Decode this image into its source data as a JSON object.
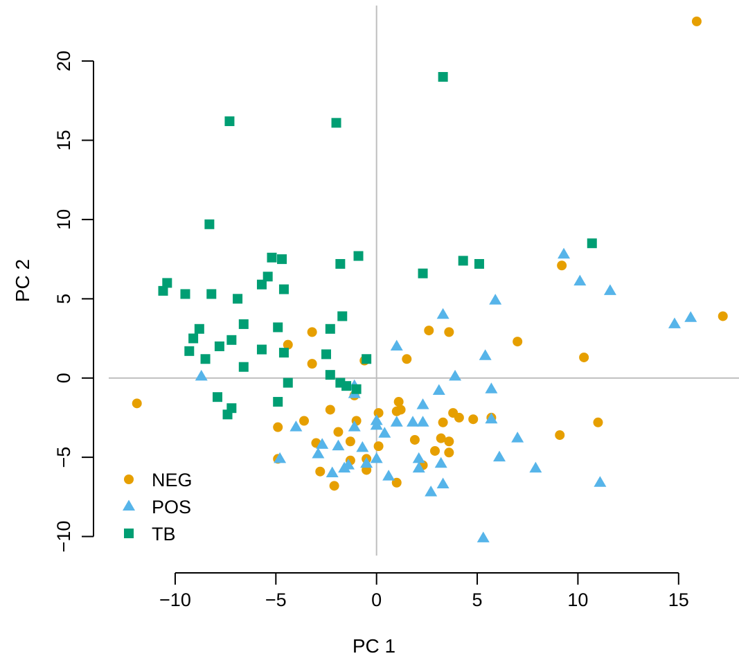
{
  "chart_data": {
    "type": "scatter",
    "title": "",
    "xlabel": "PC 1",
    "ylabel": "PC 2",
    "xlim": [
      -13.3,
      18.0
    ],
    "ylim": [
      -11.2,
      23.5
    ],
    "x_ticks": [
      -10,
      -5,
      0,
      5,
      10,
      15
    ],
    "y_ticks": [
      -10,
      -5,
      0,
      5,
      10,
      15,
      20
    ],
    "x_tick_labels": [
      "−10",
      "−5",
      "0",
      "5",
      "10",
      "15"
    ],
    "y_tick_labels": [
      "−10",
      "−5",
      "0",
      "5",
      "10",
      "15",
      "20"
    ],
    "reference_lines": {
      "x": 0,
      "y": 0
    },
    "grid": false,
    "legend_position": "bottom-left",
    "series": [
      {
        "name": "NEG",
        "color": "#E69F00",
        "marker": "circle",
        "points": [
          [
            15.9,
            22.5
          ],
          [
            17.2,
            3.9
          ],
          [
            9.2,
            7.1
          ],
          [
            10.3,
            1.3
          ],
          [
            11.0,
            -2.8
          ],
          [
            9.1,
            -3.6
          ],
          [
            7.0,
            2.3
          ],
          [
            5.7,
            -2.5
          ],
          [
            4.8,
            -2.6
          ],
          [
            4.1,
            -2.5
          ],
          [
            3.8,
            -2.2
          ],
          [
            3.3,
            -2.8
          ],
          [
            3.6,
            -4.0
          ],
          [
            3.2,
            -3.8
          ],
          [
            3.6,
            -4.7
          ],
          [
            2.9,
            -4.6
          ],
          [
            2.3,
            -5.5
          ],
          [
            2.6,
            3.0
          ],
          [
            3.6,
            2.9
          ],
          [
            1.5,
            1.2
          ],
          [
            1.1,
            -1.5
          ],
          [
            1.2,
            -2.0
          ],
          [
            1.0,
            -2.1
          ],
          [
            1.0,
            -6.6
          ],
          [
            0.1,
            -2.2
          ],
          [
            0.1,
            -4.3
          ],
          [
            -0.5,
            -5.1
          ],
          [
            -0.5,
            -5.8
          ],
          [
            -1.0,
            -2.7
          ],
          [
            -1.1,
            -1.1
          ],
          [
            -1.3,
            -4.0
          ],
          [
            -1.3,
            -5.2
          ],
          [
            -1.9,
            -3.4
          ],
          [
            -2.1,
            -6.8
          ],
          [
            -2.3,
            -2.0
          ],
          [
            -2.8,
            -5.9
          ],
          [
            -3.0,
            -4.1
          ],
          [
            -3.2,
            2.9
          ],
          [
            -3.2,
            0.9
          ],
          [
            -3.6,
            -2.7
          ],
          [
            -4.4,
            2.1
          ],
          [
            -4.9,
            -3.1
          ],
          [
            -4.9,
            -5.1
          ],
          [
            -0.6,
            1.1
          ],
          [
            -11.9,
            -1.6
          ],
          [
            1.9,
            -3.9
          ]
        ]
      },
      {
        "name": "POS",
        "color": "#56B4E9",
        "marker": "triangle",
        "points": [
          [
            9.3,
            7.8
          ],
          [
            10.1,
            6.1
          ],
          [
            11.6,
            5.5
          ],
          [
            15.6,
            3.8
          ],
          [
            14.8,
            3.4
          ],
          [
            11.1,
            -6.6
          ],
          [
            7.9,
            -5.7
          ],
          [
            7.0,
            -3.8
          ],
          [
            6.1,
            -5.0
          ],
          [
            5.7,
            -2.6
          ],
          [
            5.7,
            -0.7
          ],
          [
            5.9,
            4.9
          ],
          [
            5.4,
            1.4
          ],
          [
            5.3,
            -10.1
          ],
          [
            3.9,
            0.1
          ],
          [
            3.3,
            4.0
          ],
          [
            3.1,
            -0.8
          ],
          [
            3.2,
            -5.4
          ],
          [
            3.3,
            -6.7
          ],
          [
            2.7,
            -7.2
          ],
          [
            2.3,
            -1.7
          ],
          [
            2.3,
            -2.8
          ],
          [
            2.1,
            -5.1
          ],
          [
            2.1,
            -5.7
          ],
          [
            1.8,
            -2.8
          ],
          [
            1.0,
            -2.8
          ],
          [
            1.0,
            2.0
          ],
          [
            0.6,
            -6.2
          ],
          [
            0.4,
            -3.5
          ],
          [
            0.0,
            -2.7
          ],
          [
            0.0,
            -3.0
          ],
          [
            0.0,
            -5.1
          ],
          [
            -0.5,
            -5.4
          ],
          [
            -0.7,
            -4.4
          ],
          [
            -1.1,
            -1.0
          ],
          [
            -1.1,
            -3.1
          ],
          [
            -1.1,
            -0.5
          ],
          [
            -1.4,
            -5.5
          ],
          [
            -1.6,
            -5.7
          ],
          [
            -1.9,
            -4.3
          ],
          [
            -2.2,
            -6.0
          ],
          [
            -2.7,
            -4.2
          ],
          [
            -2.9,
            -4.8
          ],
          [
            -4.0,
            -3.1
          ],
          [
            -4.8,
            -5.1
          ],
          [
            -8.7,
            0.1
          ]
        ]
      },
      {
        "name": "TB",
        "color": "#009E73",
        "marker": "square",
        "points": [
          [
            3.3,
            19.0
          ],
          [
            -2.0,
            16.1
          ],
          [
            -7.3,
            16.2
          ],
          [
            -8.3,
            9.7
          ],
          [
            10.7,
            8.5
          ],
          [
            4.3,
            7.4
          ],
          [
            5.1,
            7.2
          ],
          [
            2.3,
            6.6
          ],
          [
            -0.9,
            7.7
          ],
          [
            -1.8,
            7.2
          ],
          [
            -4.7,
            7.5
          ],
          [
            -5.2,
            7.6
          ],
          [
            -5.4,
            6.4
          ],
          [
            -5.7,
            5.9
          ],
          [
            -4.6,
            5.6
          ],
          [
            -6.9,
            5.0
          ],
          [
            -8.2,
            5.3
          ],
          [
            -9.5,
            5.3
          ],
          [
            -10.4,
            6.0
          ],
          [
            -10.6,
            5.5
          ],
          [
            -8.8,
            3.1
          ],
          [
            -9.1,
            2.5
          ],
          [
            -9.3,
            1.7
          ],
          [
            -8.5,
            1.2
          ],
          [
            -7.8,
            2.0
          ],
          [
            -7.2,
            2.4
          ],
          [
            -6.6,
            3.4
          ],
          [
            -6.6,
            0.7
          ],
          [
            -5.7,
            1.8
          ],
          [
            -4.9,
            3.2
          ],
          [
            -4.6,
            1.6
          ],
          [
            -4.4,
            -0.3
          ],
          [
            -4.9,
            -1.5
          ],
          [
            -7.9,
            -1.2
          ],
          [
            -7.2,
            -1.9
          ],
          [
            -7.4,
            -2.3
          ],
          [
            -1.7,
            3.9
          ],
          [
            -2.3,
            3.1
          ],
          [
            -2.5,
            1.5
          ],
          [
            -2.3,
            0.2
          ],
          [
            -1.8,
            -0.3
          ],
          [
            -1.5,
            -0.5
          ],
          [
            -1.0,
            -0.7
          ],
          [
            -0.5,
            1.2
          ]
        ]
      }
    ]
  }
}
